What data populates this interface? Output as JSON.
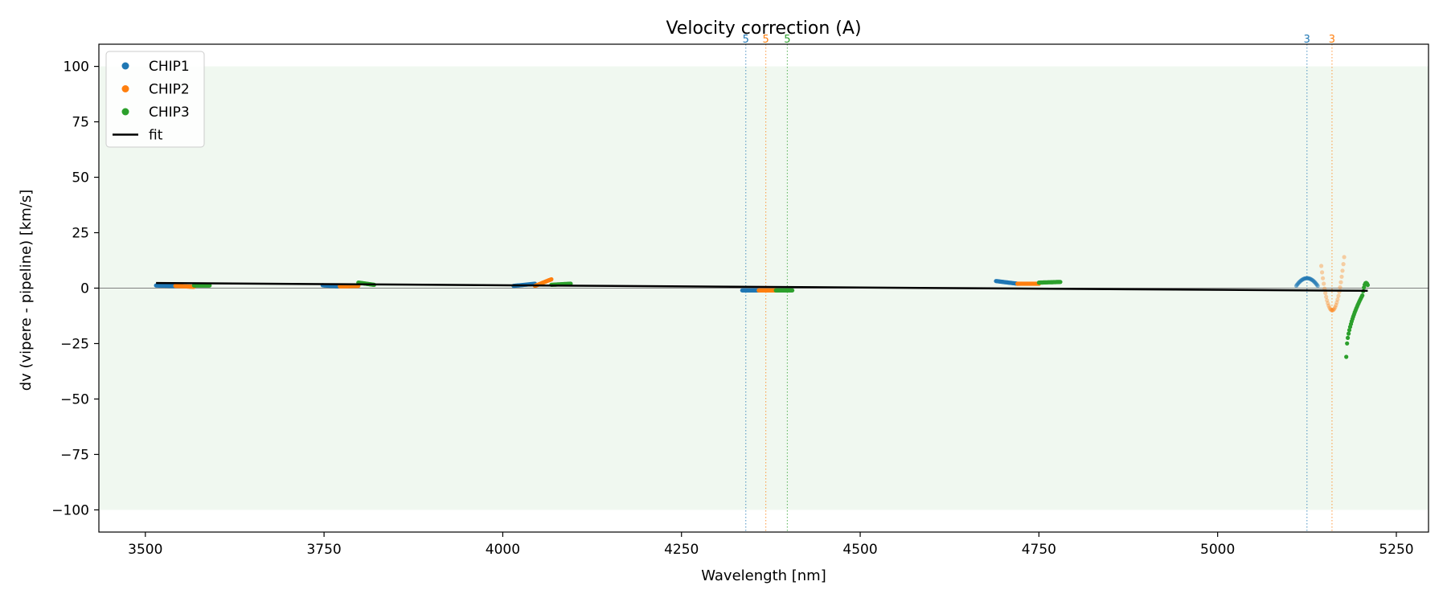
{
  "chart_data": {
    "type": "scatter",
    "title": "Velocity correction (A)",
    "xlabel": "Wavelength [nm]",
    "ylabel": "dv (vipere - pipeline) [km/s]",
    "xlim": [
      3435,
      5295
    ],
    "ylim": [
      -110,
      110
    ],
    "xticks": [
      3500,
      3750,
      4000,
      4250,
      4500,
      4750,
      5000,
      5250
    ],
    "yticks": [
      100,
      75,
      50,
      25,
      0,
      -25,
      -50,
      -75,
      -100
    ],
    "ytick_labels": [
      "100",
      "75",
      "50",
      "25",
      "0",
      "−25",
      "−50",
      "−75",
      "−100"
    ],
    "shaded_band": [
      -100,
      100
    ],
    "zero_line": 0,
    "legend_position": "upper-left",
    "legend": [
      {
        "label": "CHIP1",
        "marker": "dot",
        "color": "#1f77b4"
      },
      {
        "label": "CHIP2",
        "marker": "dot",
        "color": "#ff7f0e"
      },
      {
        "label": "CHIP3",
        "marker": "dot",
        "color": "#2ca02c"
      },
      {
        "label": "fit",
        "marker": "line",
        "color": "#000000"
      }
    ],
    "series": [
      {
        "name": "CHIP1",
        "color": "#1f77b4",
        "segments": [
          {
            "x0": 3515,
            "x1": 3540,
            "y0": 1.2,
            "y1": 1.0,
            "curve": 0,
            "alpha": 1
          },
          {
            "x0": 3748,
            "x1": 3770,
            "y0": 1.3,
            "y1": 0.8,
            "curve": 0,
            "alpha": 1
          },
          {
            "x0": 4015,
            "x1": 4045,
            "y0": 1.0,
            "y1": 2.0,
            "curve": 0,
            "alpha": 1
          },
          {
            "x0": 4335,
            "x1": 4358,
            "y0": -1.0,
            "y1": -1.0,
            "curve": 0,
            "alpha": 1
          },
          {
            "x0": 4690,
            "x1": 4720,
            "y0": 3.2,
            "y1": 2.0,
            "curve": 0,
            "alpha": 1
          },
          {
            "x0": 5110,
            "x1": 5140,
            "y0": 1.0,
            "y1": 1.0,
            "curve": 3.5,
            "alpha": 0.5
          }
        ]
      },
      {
        "name": "CHIP2",
        "color": "#ff7f0e",
        "segments": [
          {
            "x0": 3542,
            "x1": 3568,
            "y0": 1.0,
            "y1": 0.6,
            "curve": 0,
            "alpha": 1
          },
          {
            "x0": 3772,
            "x1": 3798,
            "y0": 0.8,
            "y1": 1.0,
            "curve": 0,
            "alpha": 1
          },
          {
            "x0": 4045,
            "x1": 4068,
            "y0": 1.0,
            "y1": 4.0,
            "curve": 0,
            "alpha": 1
          },
          {
            "x0": 4358,
            "x1": 4382,
            "y0": -1.0,
            "y1": -1.0,
            "curve": 0,
            "alpha": 1
          },
          {
            "x0": 4720,
            "x1": 4750,
            "y0": 2.0,
            "y1": 2.0,
            "curve": 0,
            "alpha": 1
          },
          {
            "x0": 5145,
            "x1": 5177,
            "y0": 10.0,
            "y1": 14.0,
            "curve": -22.0,
            "alpha": 0.35
          }
        ]
      },
      {
        "name": "CHIP3",
        "color": "#2ca02c",
        "segments": [
          {
            "x0": 3568,
            "x1": 3590,
            "y0": 1.2,
            "y1": 1.2,
            "curve": 0,
            "alpha": 1
          },
          {
            "x0": 3798,
            "x1": 3820,
            "y0": 2.5,
            "y1": 1.5,
            "curve": 0,
            "alpha": 1
          },
          {
            "x0": 4068,
            "x1": 4095,
            "y0": 1.5,
            "y1": 2.0,
            "curve": 0,
            "alpha": 1
          },
          {
            "x0": 4382,
            "x1": 4405,
            "y0": -1.0,
            "y1": -1.0,
            "curve": 0,
            "alpha": 1
          },
          {
            "x0": 4750,
            "x1": 4780,
            "y0": 2.5,
            "y1": 2.8,
            "curve": 0,
            "alpha": 1
          },
          {
            "x0": 5180,
            "x1": 5210,
            "y0": -31.0,
            "y1": 1.0,
            "curve": 0,
            "shape": "rise",
            "alpha": 1
          }
        ]
      }
    ],
    "fit": {
      "x": [
        3515,
        5210
      ],
      "y": [
        2.3,
        -1.2
      ],
      "color": "#000000"
    },
    "vlines": [
      {
        "x": 4340,
        "label": "5",
        "color": "#1f77b4"
      },
      {
        "x": 4368,
        "label": "5",
        "color": "#ff7f0e"
      },
      {
        "x": 4398,
        "label": "5",
        "color": "#2ca02c"
      },
      {
        "x": 5125,
        "label": "3",
        "color": "#1f77b4"
      },
      {
        "x": 5160,
        "label": "3",
        "color": "#ff7f0e"
      }
    ]
  }
}
